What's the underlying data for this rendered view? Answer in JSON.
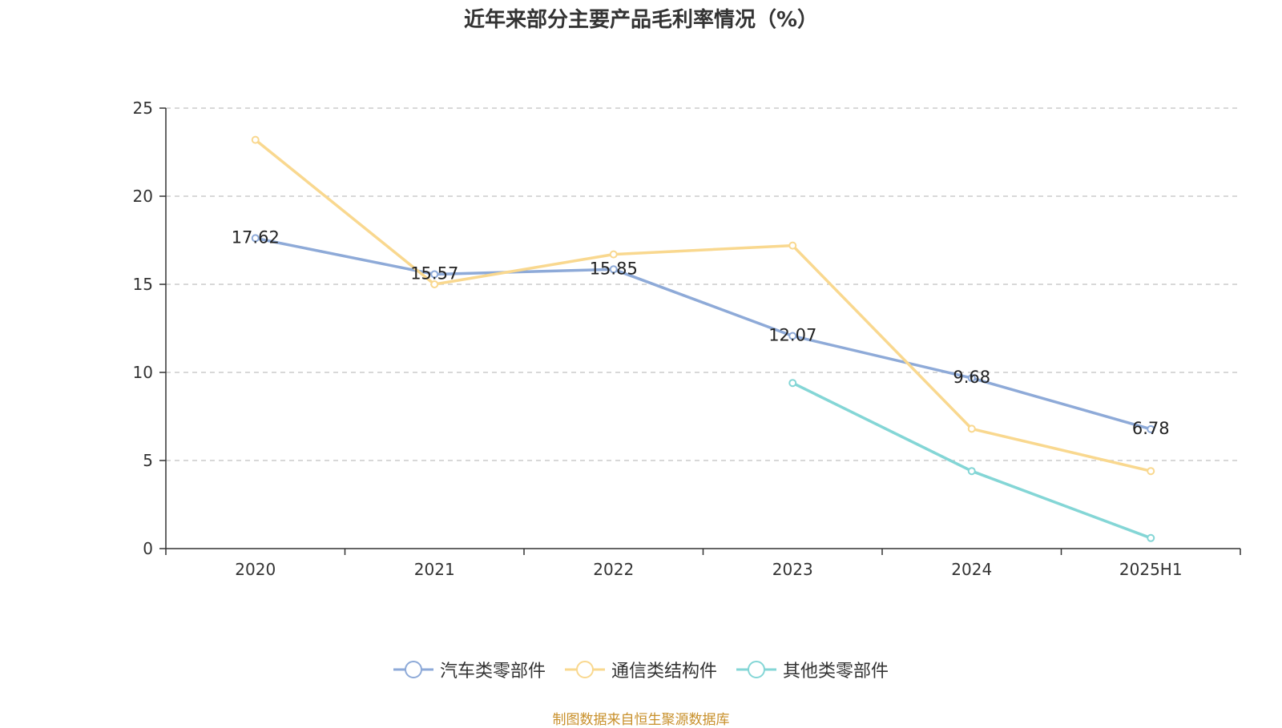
{
  "title": "近年来部分主要产品毛利率情况（%）",
  "source": "制图数据来自恒生聚源数据库",
  "chart_data": {
    "type": "line",
    "title": "近年来部分主要产品毛利率情况（%）",
    "categories": [
      "2020",
      "2021",
      "2022",
      "2023",
      "2024",
      "2025H1"
    ],
    "ylim": [
      0,
      25
    ],
    "yticks": [
      0,
      5,
      10,
      15,
      20,
      25
    ],
    "grid": true,
    "legend_position": "bottom",
    "series": [
      {
        "name": "汽车类零部件",
        "color": "#8eaad8",
        "values": [
          17.62,
          15.57,
          15.85,
          12.07,
          9.68,
          6.78
        ],
        "show_labels": true
      },
      {
        "name": "通信类结构件",
        "color": "#f9d88f",
        "values": [
          23.2,
          15.0,
          16.7,
          17.2,
          6.8,
          4.4
        ],
        "show_labels": false
      },
      {
        "name": "其他类零部件",
        "color": "#84d6d6",
        "values": [
          null,
          null,
          null,
          9.4,
          4.4,
          0.6
        ],
        "show_labels": false
      }
    ]
  }
}
